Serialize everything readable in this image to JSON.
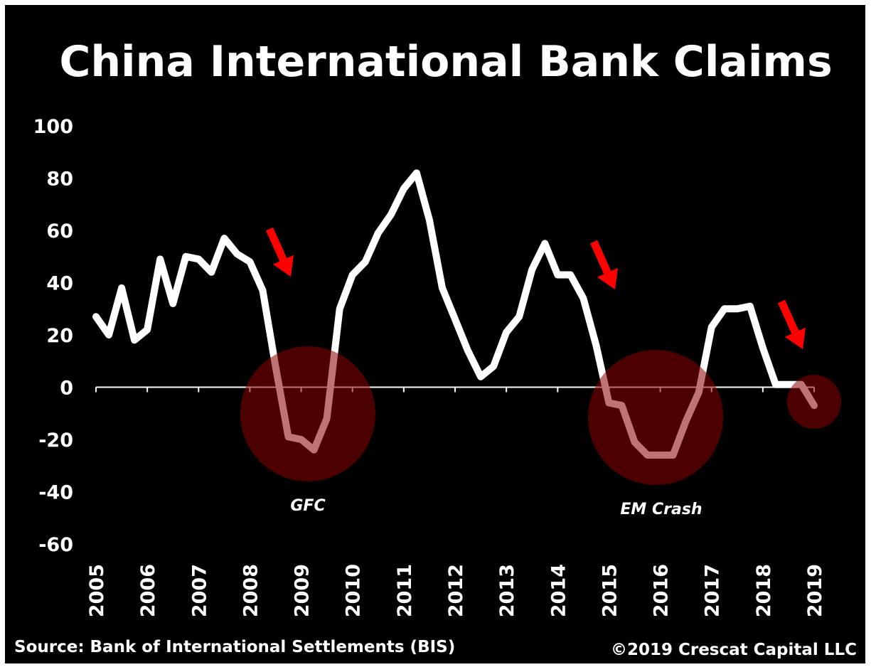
{
  "chart_data": {
    "type": "line",
    "title": "China International Bank Claims",
    "source": "Source: Bank of International Settlements (BIS)",
    "copyright": "©2019 Crescat Capital LLC",
    "ylim": [
      -60,
      100
    ],
    "y_ticks": [
      "100",
      "80",
      "60",
      "40",
      "20",
      "0",
      "-20",
      "-40",
      "-60"
    ],
    "x_ticks": [
      "2005",
      "2006",
      "2007",
      "2008",
      "2009",
      "2010",
      "2011",
      "2012",
      "2013",
      "2014",
      "2015",
      "2016",
      "2017",
      "2018",
      "2019"
    ],
    "x_range": [
      2005,
      2019
    ],
    "grid": false,
    "line_color": "#ffffff",
    "series": [
      {
        "x": [
          2005.0,
          2005.25,
          2005.5,
          2005.75,
          2006.0,
          2006.25,
          2006.5,
          2006.75,
          2007.0,
          2007.25,
          2007.5,
          2007.75,
          2008.0,
          2008.25,
          2008.5,
          2008.75,
          2009.0,
          2009.25,
          2009.5,
          2009.75,
          2010.0,
          2010.25,
          2010.5,
          2010.75,
          2011.0,
          2011.25,
          2011.5,
          2011.75,
          2012.0,
          2012.25,
          2012.5,
          2012.75,
          2013.0,
          2013.25,
          2013.5,
          2013.75,
          2014.0,
          2014.25,
          2014.5,
          2014.75,
          2015.0,
          2015.25,
          2015.5,
          2015.75,
          2016.0,
          2016.25,
          2016.5,
          2016.75,
          2017.0,
          2017.25,
          2017.5,
          2017.75,
          2018.0,
          2018.25,
          2018.5,
          2018.75,
          2019.0
        ],
        "values": [
          27,
          20,
          38,
          18,
          22,
          49,
          32,
          50,
          49,
          44,
          57,
          51,
          48,
          37,
          8,
          -19,
          -20,
          -24,
          -12,
          30,
          43,
          48,
          59,
          66,
          76,
          82,
          64,
          38,
          26,
          14,
          4,
          8,
          21,
          27,
          45,
          55,
          43,
          43,
          34,
          16,
          -6,
          -7,
          -21,
          -26,
          -26,
          -26,
          -13,
          -2,
          23,
          30,
          30,
          31,
          15,
          1,
          1,
          1,
          -7
        ]
      }
    ],
    "annotations": [
      {
        "label": "GFC",
        "color": "#8b0000"
      },
      {
        "label": "EM Crash",
        "color": "#8b0000"
      },
      {
        "label": "",
        "color": "#8b0000"
      }
    ],
    "arrow_color": "#ff0000"
  }
}
